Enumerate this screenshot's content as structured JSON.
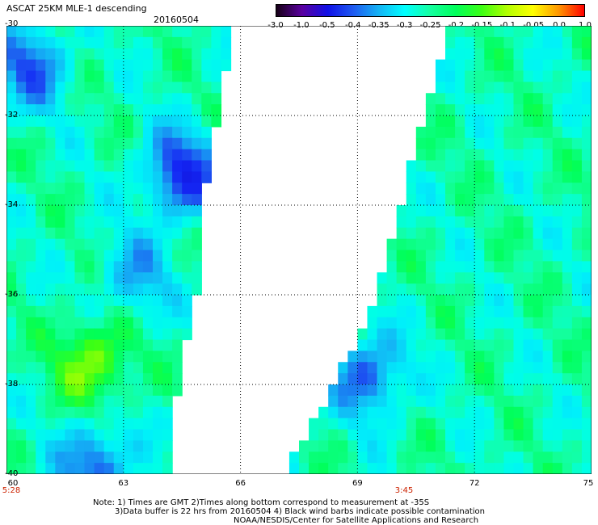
{
  "header": {
    "title": "ASCAT 25KM MLE-1 descending",
    "date": "20160504"
  },
  "colorbar": {
    "ticks": [
      "-3.0",
      "-1.0",
      "-0.5",
      "-0.4",
      "-0.35",
      "-0.3",
      "-0.25",
      "-0.2",
      "-0.15",
      "-0.1",
      "-0.05",
      "0.0",
      "1.0"
    ],
    "colors": [
      "#160016",
      "#5a00a0",
      "#1010e6",
      "#1e5af0",
      "#14b4f5",
      "#00ffff",
      "#14ffa0",
      "#00ff5a",
      "#3cff14",
      "#b4ff00",
      "#ffff00",
      "#ff9600",
      "#ff0000"
    ]
  },
  "time_labels": {
    "left": "5:28",
    "mid": "3:45"
  },
  "notes": {
    "line1": "Note: 1) Times are GMT 2)Times along bottom correspond to measurement at -35S",
    "line2": "3)Data buffer is 22 hrs from 20160504 4) Black wind barbs indicate possible contamination",
    "line3": "NOAA/NESDIS/Center for Satellite Applications and Research"
  },
  "chart_data": {
    "type": "heatmap",
    "title": "ASCAT 25KM MLE-1 descending",
    "date": "20160504",
    "x_ticks": [
      "60",
      "63",
      "66",
      "69",
      "72",
      "75"
    ],
    "y_ticks": [
      "-30",
      "-32",
      "-34",
      "-36",
      "-38",
      "-40"
    ],
    "xlim": [
      60,
      75
    ],
    "ylim": [
      -40,
      -30
    ],
    "grid": true,
    "color_scale": "-3.0 to 1.0, blue (low) to red (high)",
    "swaths": [
      {
        "name": "west swath",
        "edge_lon_by_lat": [
          {
            "lat": -30,
            "lon": 65.8
          },
          {
            "lat": -32,
            "lon": 65.4
          },
          {
            "lat": -34,
            "lon": 65.0
          },
          {
            "lat": -36,
            "lon": 64.9
          },
          {
            "lat": -38,
            "lon": 64.4
          },
          {
            "lat": -40,
            "lon": 64.2
          }
        ]
      },
      {
        "name": "east swath",
        "edge_lon_by_lat": [
          {
            "lat": -30,
            "lon": 71.4
          },
          {
            "lat": -32,
            "lon": 70.7
          },
          {
            "lat": -34,
            "lon": 70.1
          },
          {
            "lat": -36,
            "lon": 69.5
          },
          {
            "lat": -38,
            "lon": 68.4
          },
          {
            "lat": -40,
            "lon": 67.1
          }
        ]
      }
    ],
    "features": [
      {
        "desc": "strong negative patch",
        "lat": -30.9,
        "lon": 60.6,
        "value": -0.4
      },
      {
        "desc": "negative band",
        "lat": -33.3,
        "lon": 64.5,
        "value": -0.45
      },
      {
        "desc": "negative pocket",
        "lat": -35.6,
        "lon": 63.3,
        "value": -0.35
      },
      {
        "desc": "positive patch",
        "lat": -37.5,
        "lon": 62.2,
        "value": -0.12
      },
      {
        "desc": "negative lobe",
        "lat": -37.8,
        "lon": 69.3,
        "value": -0.4
      },
      {
        "desc": "negative spot",
        "lat": -39.8,
        "lon": 62.3,
        "value": -0.4
      }
    ]
  }
}
